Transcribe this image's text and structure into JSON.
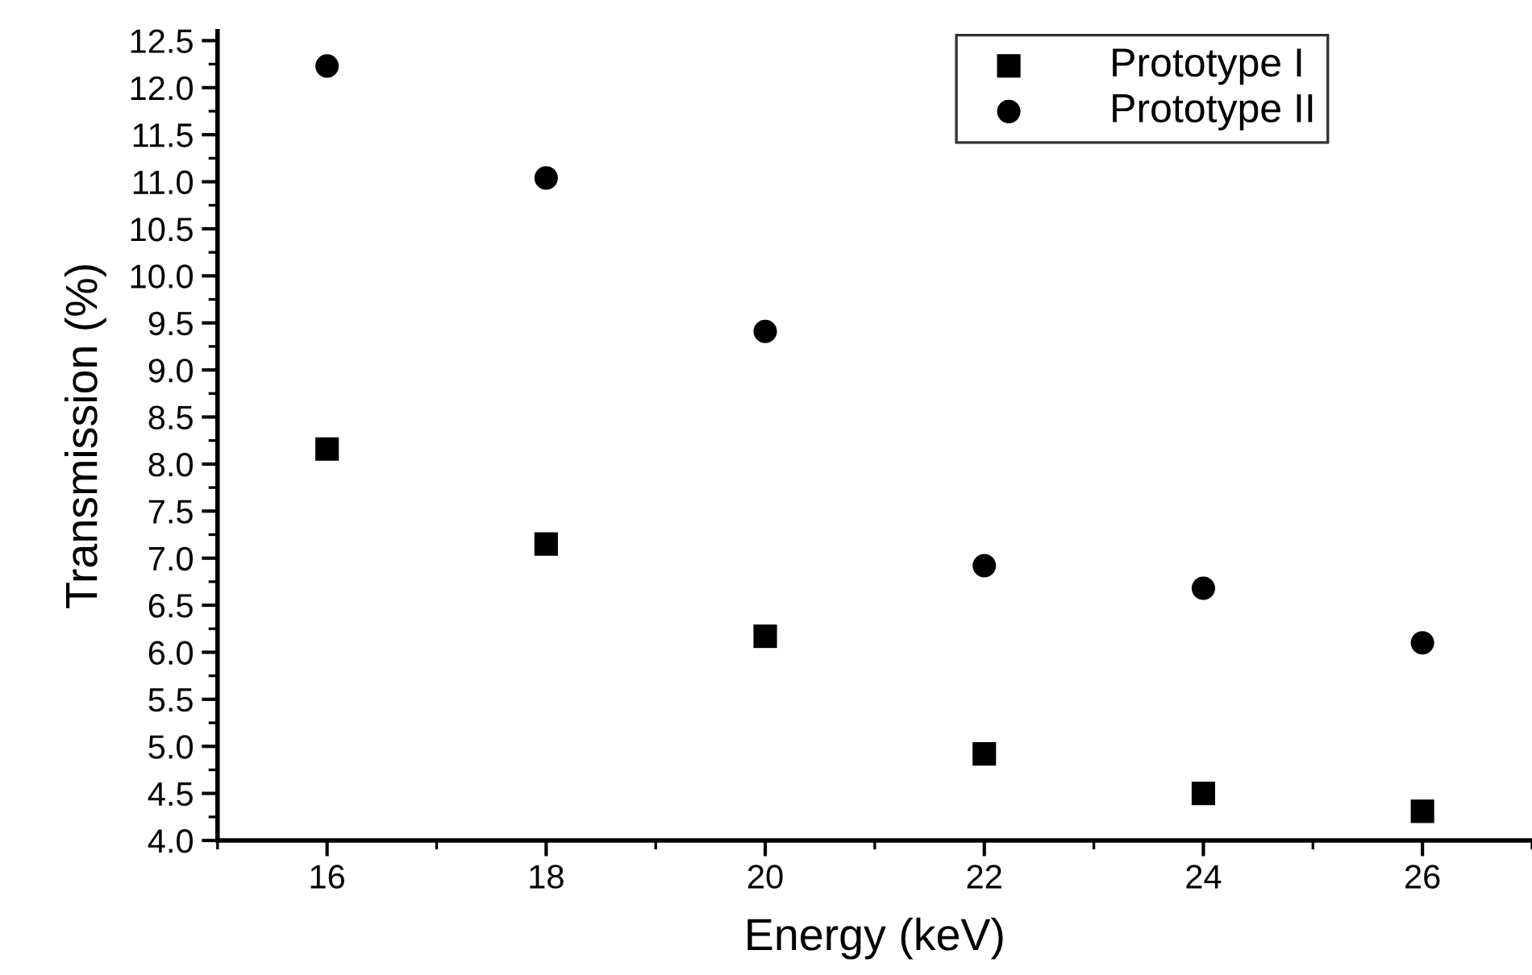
{
  "chart_data": {
    "type": "scatter",
    "xlabel": "Energy (keV)",
    "ylabel": "Transmission (%)",
    "x": [
      16,
      18,
      20,
      22,
      24,
      26
    ],
    "series": [
      {
        "name": "Prototype I",
        "color": "#000000",
        "marker": "square",
        "values": [
          8.16,
          7.15,
          6.17,
          4.92,
          4.5,
          4.31
        ]
      },
      {
        "name": "Prototype II",
        "color": "#000000",
        "marker": "circle",
        "values": [
          12.23,
          11.04,
          9.41,
          6.92,
          6.68,
          6.1
        ]
      }
    ],
    "xlim": [
      15,
      27
    ],
    "xticks": [
      16,
      18,
      20,
      22,
      24,
      26
    ],
    "ylim": [
      4.0,
      12.6
    ],
    "yticks": [
      {
        "value": 4.0,
        "label": "4.0"
      },
      {
        "value": 4.5,
        "label": "4.5"
      },
      {
        "value": 5.0,
        "label": "5.0"
      },
      {
        "value": 5.5,
        "label": "5.5"
      },
      {
        "value": 6.0,
        "label": "6.0"
      },
      {
        "value": 6.5,
        "label": "6.5"
      },
      {
        "value": 7.0,
        "label": "7.0"
      },
      {
        "value": 7.5,
        "label": "7.5"
      },
      {
        "value": 8.0,
        "label": "8.0"
      },
      {
        "value": 8.5,
        "label": "8.5"
      },
      {
        "value": 9.0,
        "label": "9.0"
      },
      {
        "value": 9.5,
        "label": "9.5"
      },
      {
        "value": 10.0,
        "label": "10.0"
      },
      {
        "value": 10.5,
        "label": "10.5"
      },
      {
        "value": 11.0,
        "label": "11.0"
      },
      {
        "value": 11.5,
        "label": "11.5"
      },
      {
        "value": 12.0,
        "label": "12.0"
      },
      {
        "value": 12.5,
        "label": "12.5"
      }
    ],
    "grid": false,
    "legend": "top right"
  }
}
